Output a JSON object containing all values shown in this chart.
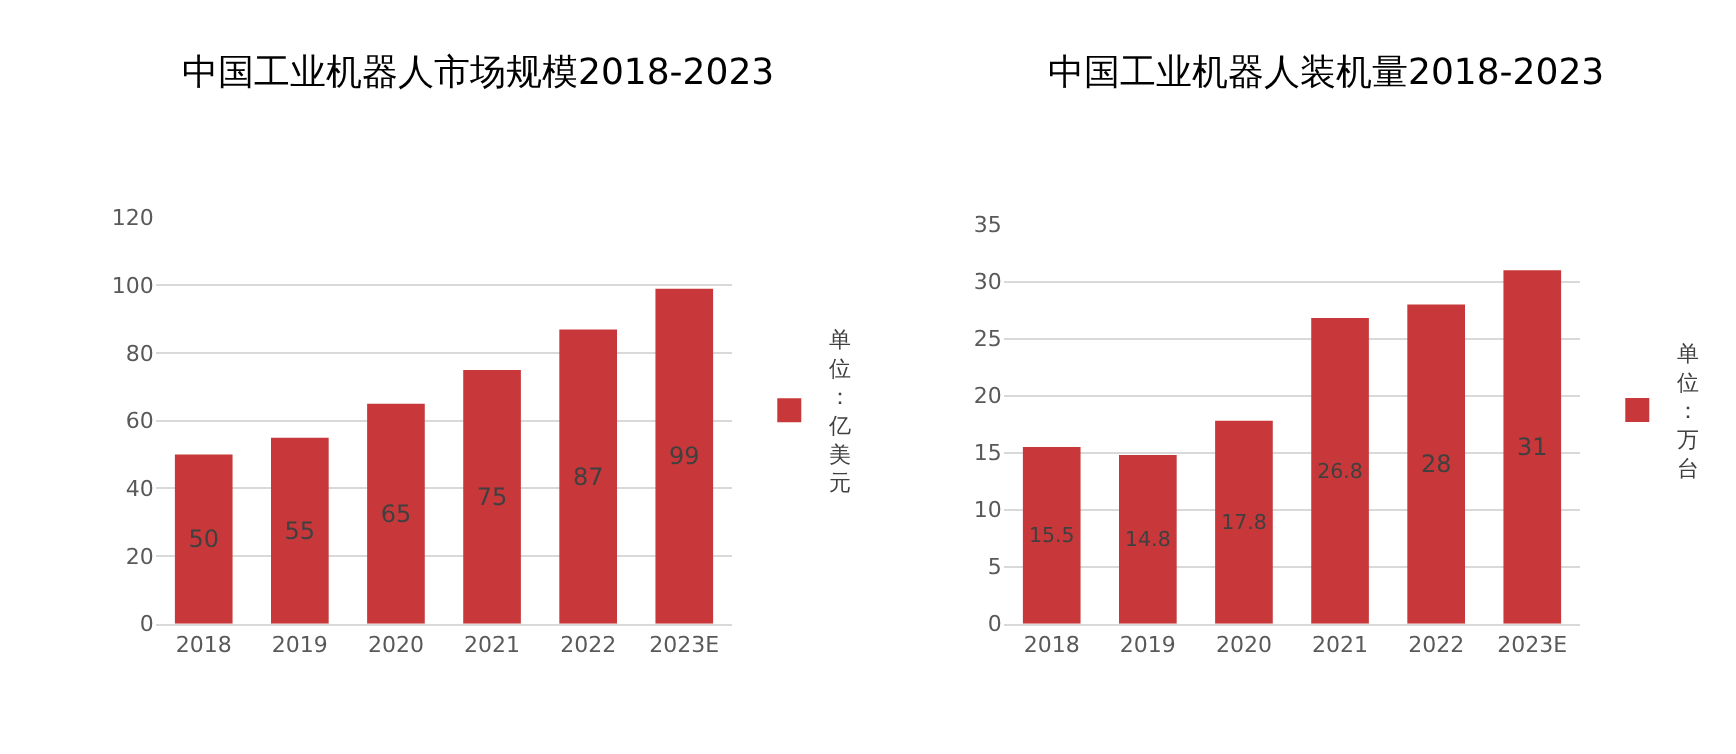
{
  "chart_data": [
    {
      "type": "bar",
      "title": "中国工业机器人市场规模2018-2023",
      "categories": [
        "2018",
        "2019",
        "2020",
        "2021",
        "2022",
        "2023E"
      ],
      "series": [
        {
          "name": "单位：亿美元",
          "color": "#c8383a",
          "values": [
            50,
            55,
            65,
            75,
            87,
            99
          ]
        }
      ],
      "ylim": [
        0,
        120
      ],
      "yticks": [
        0,
        20,
        40,
        60,
        80,
        100,
        120
      ],
      "grid": "y",
      "legend": "right",
      "data_labels": true
    },
    {
      "type": "bar",
      "title": "中国工业机器人装机量2018-2023",
      "categories": [
        "2018",
        "2019",
        "2020",
        "2021",
        "2022",
        "2023E"
      ],
      "series": [
        {
          "name": "单位：万台",
          "color": "#c8383a",
          "values": [
            15.5,
            14.8,
            17.8,
            26.8,
            28,
            31
          ]
        }
      ],
      "ylim": [
        0,
        35
      ],
      "yticks": [
        0,
        5,
        10,
        15,
        20,
        25,
        30,
        35
      ],
      "grid": "y",
      "legend": "right",
      "data_labels": true
    }
  ]
}
